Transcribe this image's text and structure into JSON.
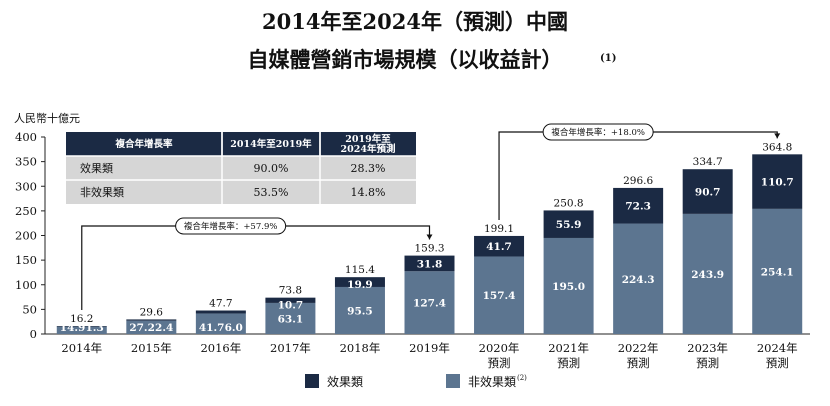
{
  "title": {
    "line1": "2014年至2024年（預測）中國",
    "line2": "自媒體營銷市場規模（以收益計）",
    "note": "(1)"
  },
  "colors": {
    "effect": "#1b2a44",
    "non_effect": "#5c7590",
    "table_header": "#1b2a44",
    "table_row": "#d6d6d6",
    "axis": "#222222"
  },
  "cagr_table": {
    "headers": [
      "複合年增長率",
      "2014年至2019年",
      "2019年至\n2024年預測"
    ],
    "rows": [
      [
        "效果類",
        "90.0%",
        "28.3%"
      ],
      [
        "非效果類",
        "53.5%",
        "14.8%"
      ]
    ]
  },
  "cagr_annotations": [
    {
      "label": "複合年增長率：+57.9%",
      "from": "2014年",
      "to": "2019年"
    },
    {
      "label": "複合年增長率：+18.0%",
      "from": "2020年\n預測",
      "to": "2024年\n預測"
    }
  ],
  "legend": [
    {
      "label": "效果類",
      "series": "effect",
      "note": ""
    },
    {
      "label": "非效果類",
      "series": "non_effect",
      "note": "(2)"
    }
  ],
  "chart_data": {
    "type": "bar",
    "stacked": true,
    "title": "2014年至2024年（預測）中國自媒體營銷市場規模（以收益計）",
    "ylabel": "人民幣十億元",
    "xlabel": "",
    "ylim": [
      0,
      400
    ],
    "yticks": [
      0,
      50,
      100,
      150,
      200,
      250,
      300,
      350,
      400
    ],
    "grid": false,
    "legend_position": "bottom",
    "categories": [
      "2014年",
      "2015年",
      "2016年",
      "2017年",
      "2018年",
      "2019年",
      "2020年\n預測",
      "2021年\n預測",
      "2022年\n預測",
      "2023年\n預測",
      "2024年\n預測"
    ],
    "series": [
      {
        "name": "非效果類",
        "key": "non_effect",
        "values": [
          14.9,
          27.2,
          41.7,
          63.1,
          95.5,
          127.4,
          157.4,
          195.0,
          224.3,
          243.9,
          254.1
        ]
      },
      {
        "name": "效果類",
        "key": "effect",
        "values": [
          1.3,
          2.4,
          6.0,
          10.7,
          19.9,
          31.8,
          41.7,
          55.9,
          72.3,
          90.7,
          110.7
        ]
      }
    ],
    "totals": [
      16.2,
      29.6,
      47.7,
      73.8,
      115.4,
      159.3,
      199.1,
      250.8,
      296.6,
      334.7,
      364.8
    ]
  }
}
